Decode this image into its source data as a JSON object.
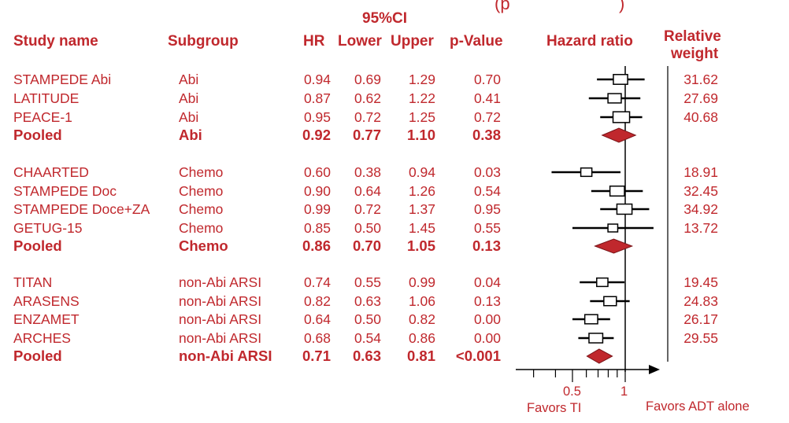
{
  "header": {
    "partial_top": "(p",
    "ci_group": "95%CI",
    "study_name": "Study name",
    "subgroup": "Subgroup",
    "hr": "HR",
    "lower": "Lower",
    "upper": "Upper",
    "p_value": "p-Value",
    "hazard_ratio": "Hazard ratio",
    "relative_weight_1": "Relative",
    "relative_weight_2": "weight"
  },
  "rows": [
    {
      "study": "STAMPEDE Abi",
      "subgroup": "Abi",
      "hr": "0.94",
      "lower": "0.69",
      "upper": "1.29",
      "p": "0.70",
      "weight": "31.62",
      "pooled": false
    },
    {
      "study": "LATITUDE",
      "subgroup": "Abi",
      "hr": "0.87",
      "lower": "0.62",
      "upper": "1.22",
      "p": "0.41",
      "weight": "27.69",
      "pooled": false
    },
    {
      "study": "PEACE-1",
      "subgroup": "Abi",
      "hr": "0.95",
      "lower": "0.72",
      "upper": "1.25",
      "p": "0.72",
      "weight": "40.68",
      "pooled": false
    },
    {
      "study": "Pooled",
      "subgroup": "Abi",
      "hr": "0.92",
      "lower": "0.77",
      "upper": "1.10",
      "p": "0.38",
      "weight": "",
      "pooled": true
    },
    {
      "study": "CHAARTED",
      "subgroup": "Chemo",
      "hr": "0.60",
      "lower": "0.38",
      "upper": "0.94",
      "p": "0.03",
      "weight": "18.91",
      "pooled": false
    },
    {
      "study": "STAMPEDE Doc",
      "subgroup": "Chemo",
      "hr": "0.90",
      "lower": "0.64",
      "upper": "1.26",
      "p": "0.54",
      "weight": "32.45",
      "pooled": false
    },
    {
      "study": "STAMPEDE Doce+ZA",
      "subgroup": "Chemo",
      "hr": "0.99",
      "lower": "0.72",
      "upper": "1.37",
      "p": "0.95",
      "weight": "34.92",
      "pooled": false
    },
    {
      "study": "GETUG-15",
      "subgroup": "Chemo",
      "hr": "0.85",
      "lower": "0.50",
      "upper": "1.45",
      "p": "0.55",
      "weight": "13.72",
      "pooled": false
    },
    {
      "study": "Pooled",
      "subgroup": "Chemo",
      "hr": "0.86",
      "lower": "0.70",
      "upper": "1.05",
      "p": "0.13",
      "weight": "",
      "pooled": true
    },
    {
      "study": "TITAN",
      "subgroup": "non-Abi ARSI",
      "hr": "0.74",
      "lower": "0.55",
      "upper": "0.99",
      "p": "0.04",
      "weight": "19.45",
      "pooled": false
    },
    {
      "study": "ARASENS",
      "subgroup": "non-Abi ARSI",
      "hr": "0.82",
      "lower": "0.63",
      "upper": "1.06",
      "p": "0.13",
      "weight": "24.83",
      "pooled": false
    },
    {
      "study": "ENZAMET",
      "subgroup": "non-Abi ARSI",
      "hr": "0.64",
      "lower": "0.50",
      "upper": "0.82",
      "p": "0.00",
      "weight": "26.17",
      "pooled": false
    },
    {
      "study": "ARCHES",
      "subgroup": "non-Abi ARSI",
      "hr": "0.68",
      "lower": "0.54",
      "upper": "0.86",
      "p": "0.00",
      "weight": "29.55",
      "pooled": false
    },
    {
      "study": "Pooled",
      "subgroup": "non-Abi ARSI",
      "hr": "0.71",
      "lower": "0.63",
      "upper": "0.81",
      "p": "<0.001",
      "weight": "",
      "pooled": true
    }
  ],
  "axis": {
    "tick_05": "0.5",
    "tick_1": "1",
    "favors_left": "Favors TI",
    "favors_right": "Favors ADT alone"
  },
  "colors": {
    "text": "#c0282d",
    "diamond": "#c0282d",
    "lines": "#000000"
  },
  "chart_data": {
    "type": "forest",
    "title": "",
    "xlabel": "Hazard ratio",
    "x_scale": "log",
    "xlim": [
      0.2,
      2.0
    ],
    "reference_line": 1,
    "series": [
      {
        "name": "STAMPEDE Abi",
        "hr": 0.94,
        "ci": [
          0.69,
          1.29
        ],
        "weight": 31.62
      },
      {
        "name": "LATITUDE",
        "hr": 0.87,
        "ci": [
          0.62,
          1.22
        ],
        "weight": 27.69
      },
      {
        "name": "PEACE-1",
        "hr": 0.95,
        "ci": [
          0.72,
          1.25
        ],
        "weight": 40.68
      },
      {
        "name": "Pooled",
        "hr": 0.92,
        "ci": [
          0.77,
          1.1
        ]
      },
      {
        "name": "CHAARTED",
        "hr": 0.6,
        "ci": [
          0.38,
          0.94
        ],
        "weight": 18.91
      },
      {
        "name": "STAMPEDE Doc",
        "hr": 0.9,
        "ci": [
          0.64,
          1.26
        ],
        "weight": 32.45
      },
      {
        "name": "STAMPEDE Doce+ZA",
        "hr": 0.99,
        "ci": [
          0.72,
          1.37
        ],
        "weight": 34.92
      },
      {
        "name": "GETUG-15",
        "hr": 0.85,
        "ci": [
          0.5,
          1.45
        ],
        "weight": 13.72
      },
      {
        "name": "Pooled",
        "hr": 0.86,
        "ci": [
          0.7,
          1.05
        ]
      },
      {
        "name": "TITAN",
        "hr": 0.74,
        "ci": [
          0.55,
          0.99
        ],
        "weight": 19.45
      },
      {
        "name": "ARASENS",
        "hr": 0.82,
        "ci": [
          0.63,
          1.06
        ],
        "weight": 24.83
      },
      {
        "name": "ENZAMET",
        "hr": 0.64,
        "ci": [
          0.5,
          0.82
        ],
        "weight": 26.17
      },
      {
        "name": "ARCHES",
        "hr": 0.68,
        "ci": [
          0.54,
          0.86
        ],
        "weight": 29.55
      },
      {
        "name": "Pooled",
        "hr": 0.71,
        "ci": [
          0.63,
          0.81
        ]
      }
    ]
  }
}
